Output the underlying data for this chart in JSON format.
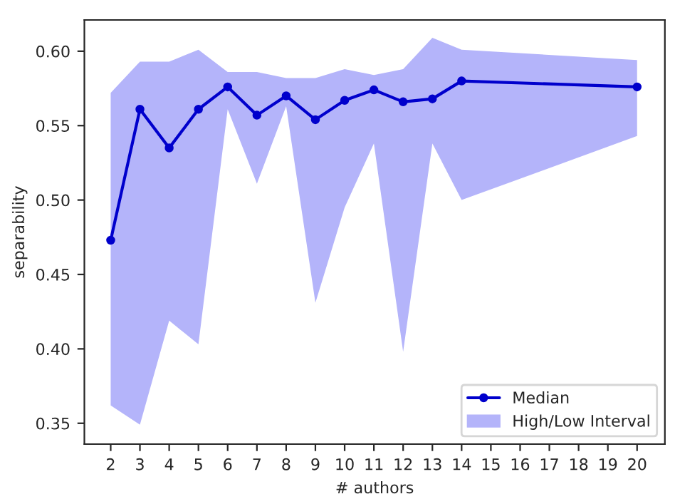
{
  "chart_data": {
    "type": "line",
    "xlabel": "# authors",
    "ylabel": "separability",
    "categories": [
      "2",
      "3",
      "4",
      "5",
      "6",
      "7",
      "8",
      "9",
      "10",
      "11",
      "12",
      "13",
      "14",
      "15",
      "16",
      "17",
      "18",
      "19",
      "20"
    ],
    "series": [
      {
        "name": "Median",
        "color": "#0000cc",
        "marker": "circle",
        "values": [
          0.473,
          0.561,
          0.535,
          0.561,
          0.576,
          0.557,
          0.57,
          0.554,
          0.567,
          0.574,
          0.566,
          0.568,
          0.58,
          null,
          null,
          null,
          null,
          null,
          0.576
        ]
      },
      {
        "name": "High/Low Interval",
        "type": "area",
        "color": "#b4b4fa",
        "values": [
          null,
          null,
          null,
          null,
          null,
          null,
          null,
          null,
          null,
          null,
          null,
          null,
          null,
          null,
          null,
          null,
          null,
          null,
          null
        ],
        "lower": [
          0.362,
          0.349,
          0.419,
          0.403,
          0.561,
          0.511,
          0.563,
          0.431,
          0.495,
          0.538,
          0.398,
          0.538,
          0.5,
          null,
          null,
          null,
          null,
          null,
          0.543
        ],
        "upper": [
          0.572,
          0.593,
          0.593,
          0.601,
          0.586,
          0.586,
          0.582,
          0.582,
          0.588,
          0.584,
          0.588,
          0.609,
          0.601,
          null,
          null,
          null,
          null,
          null,
          0.594
        ]
      }
    ],
    "ylim": [
      0.336,
      0.621
    ],
    "yticks": [
      {
        "value": 0.35,
        "label": "0.35"
      },
      {
        "value": 0.4,
        "label": "0.40"
      },
      {
        "value": 0.45,
        "label": "0.45"
      },
      {
        "value": 0.5,
        "label": "0.50"
      },
      {
        "value": 0.55,
        "label": "0.55"
      },
      {
        "value": 0.6,
        "label": "0.60"
      }
    ],
    "legend": "lower right",
    "grid": false
  }
}
